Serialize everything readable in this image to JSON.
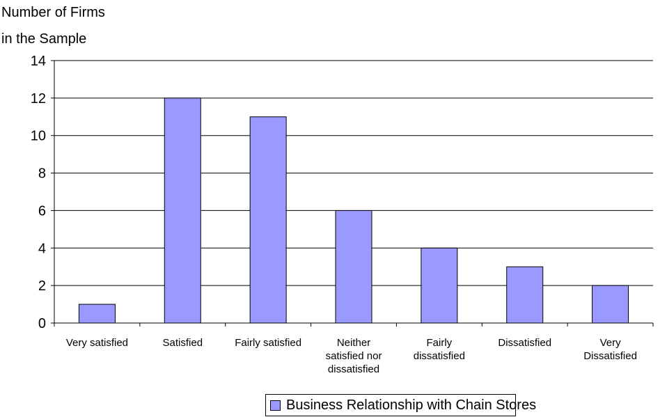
{
  "chart_data": {
    "type": "bar",
    "ylabel_lines": [
      "Number of Firms",
      " in the Sample"
    ],
    "xlabel": "",
    "categories": [
      [
        "Very satisfied"
      ],
      [
        "Satisfied"
      ],
      [
        "Fairly satisfied"
      ],
      [
        "Neither",
        "satisfied nor",
        "dissatisfied"
      ],
      [
        "Fairly",
        "dissatisfied"
      ],
      [
        "Dissatisfied"
      ],
      [
        "Very",
        "Dissatisfied"
      ]
    ],
    "series": [
      {
        "name": "Business Relationship with Chain Stores",
        "values": [
          1,
          12,
          11,
          6,
          4,
          3,
          2
        ]
      }
    ],
    "ylim": [
      0,
      14
    ],
    "yticks": [
      "0",
      "2",
      "4",
      "6",
      "8",
      "10",
      "12",
      "14"
    ],
    "grid": true,
    "legend_position": "bottom-center",
    "colors": {
      "bar": "#9999ff",
      "bar_stroke": "#000000",
      "grid": "#000000"
    }
  }
}
